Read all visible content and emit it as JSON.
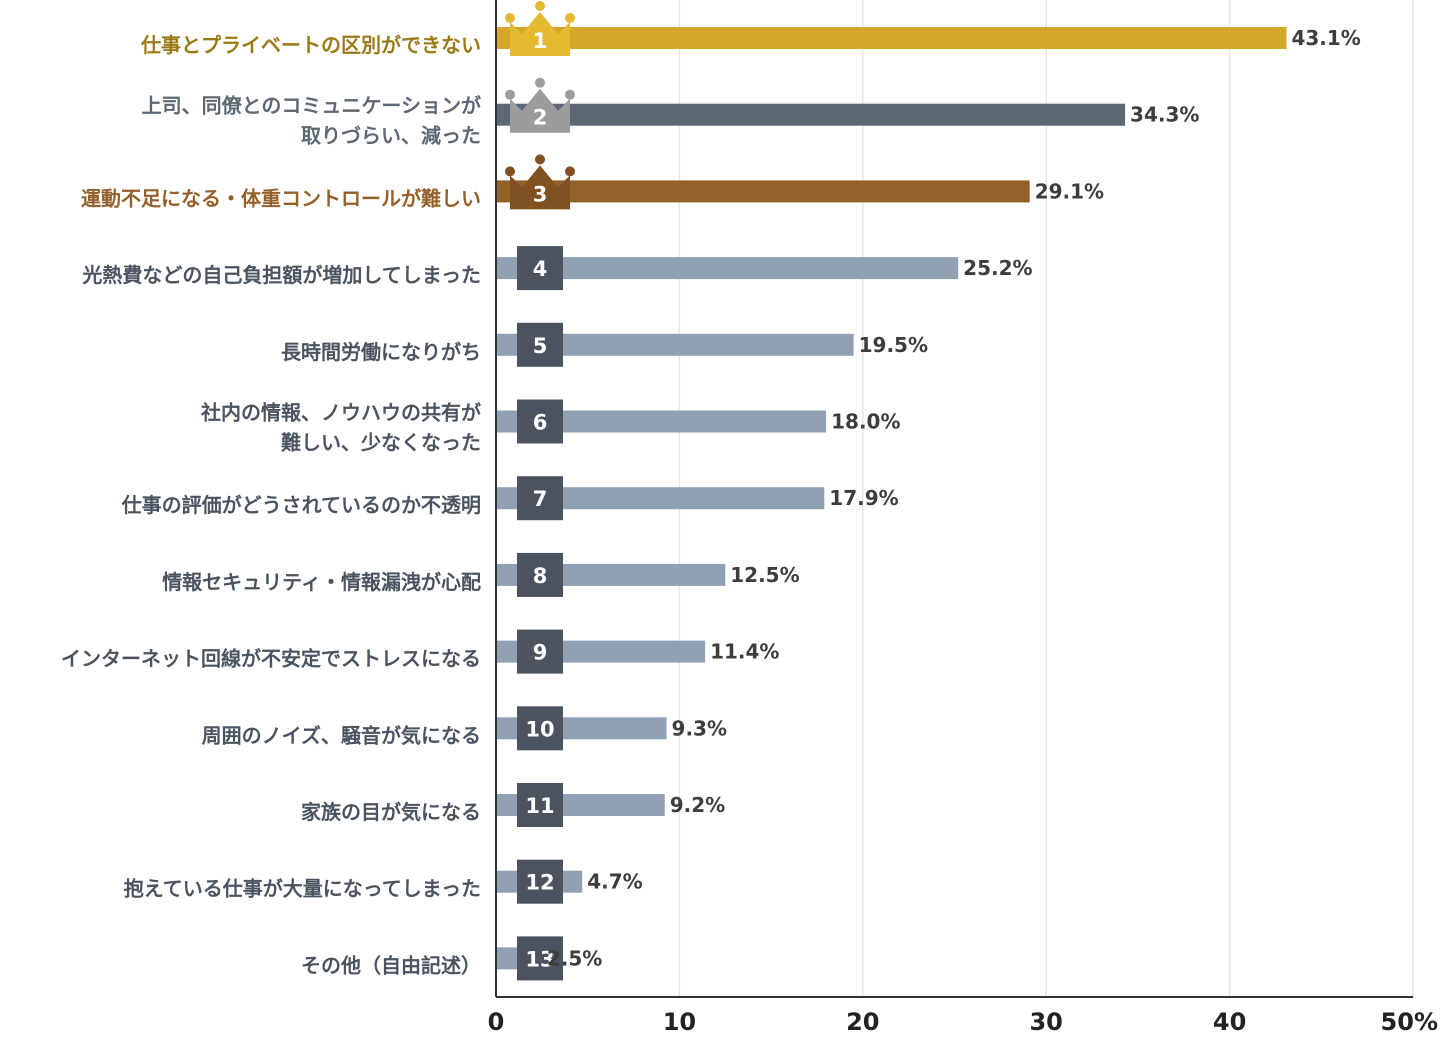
{
  "chart_data": {
    "type": "bar",
    "orientation": "horizontal",
    "categories": [
      [
        "仕事とプライベートの区別ができない"
      ],
      [
        "上司、同僚とのコミュニケーションが",
        "取りづらい、減った"
      ],
      [
        "運動不足になる・体重コントロールが難しい"
      ],
      [
        "光熱費などの自己負担額が増加してしまった"
      ],
      [
        "長時間労働になりがち"
      ],
      [
        "社内の情報、ノウハウの共有が",
        "難しい、少なくなった"
      ],
      [
        "仕事の評価がどうされているのか不透明"
      ],
      [
        "情報セキュリティ・情報漏洩が心配"
      ],
      [
        "インターネット回線が不安定でストレスになる"
      ],
      [
        "周囲のノイズ、騒音が気になる"
      ],
      [
        "家族の目が気になる"
      ],
      [
        "抱えている仕事が大量になってしまった"
      ],
      [
        "その他（自由記述）"
      ]
    ],
    "values": [
      43.1,
      34.3,
      29.1,
      25.2,
      19.5,
      18.0,
      17.9,
      12.5,
      11.4,
      9.3,
      9.2,
      4.7,
      2.5
    ],
    "value_labels": [
      "43.1%",
      "34.3%",
      "29.1%",
      "25.2%",
      "19.5%",
      "18.0%",
      "17.9%",
      "12.5%",
      "11.4%",
      "9.3%",
      "9.2%",
      "4.7%",
      "2.5%"
    ],
    "ranks": [
      "1",
      "2",
      "3",
      "4",
      "5",
      "6",
      "7",
      "8",
      "9",
      "10",
      "11",
      "12",
      "13"
    ],
    "xticks": [
      "0",
      "10",
      "20",
      "30",
      "40",
      "50%"
    ],
    "xlim": [
      0,
      50
    ],
    "grid": true,
    "title": "",
    "xlabel": "",
    "ylabel": "",
    "colors": {
      "rank1_bar": "#d4a62a",
      "rank1_label": "#9a7a16",
      "rank1_crown": "#e2b92f",
      "rank2_bar": "#5d6875",
      "rank2_label": "#5d6875",
      "rank2_crown": "#9c9c9c",
      "rank3_bar": "#94602a",
      "rank3_label": "#94602a",
      "rank3_crown": "#7f5123",
      "other_bar": "#8fa1b3",
      "other_label": "#4a5461",
      "rank_box": "#4b5360",
      "grid": "#e6e6e6",
      "axis": "#333333"
    }
  }
}
